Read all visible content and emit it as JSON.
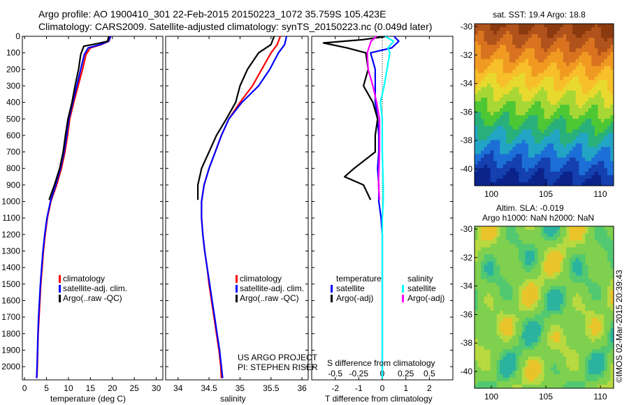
{
  "header": {
    "line1": "Argo profile: AO 1900410_301 22-Feb-2015 20150223_1072 35.759S 105.423E",
    "line2": "Climatology: CARS2009. Satellite-adjusted climatology: synTS_20150223.nc (0.049d later)"
  },
  "footer": {
    "project": "US ARGO PROJECT",
    "pi": "PI: STEPHEN RISER",
    "credit": "©IMOS 02-Mar-2015 20:39:43"
  },
  "maps": {
    "sst": {
      "title": "sat. SST: 19.4 Argo: 18.8",
      "yticks": [
        "-30",
        "-32",
        "-34",
        "-36",
        "-38",
        "-40"
      ],
      "xticks": [
        "100",
        "105",
        "110"
      ]
    },
    "sla": {
      "title1": "Altim. SLA: -0.019",
      "title2": "Argo h1000: NaN h2000: NaN",
      "yticks": [
        "-30",
        "-32",
        "-34",
        "-36",
        "-38",
        "-40"
      ],
      "xticks": [
        "100",
        "105",
        "110"
      ]
    }
  },
  "colors": {
    "climatology": "#ff0000",
    "satellite": "#0000ff",
    "argo": "#000000",
    "sal_satellite": "#00ffff",
    "sal_argo": "#ff00ff"
  },
  "chart_data": [
    {
      "type": "line",
      "xlabel": "temperature (deg C)",
      "ylabel": "",
      "xlim": [
        -0.5,
        31.5
      ],
      "ylim": [
        2080,
        0
      ],
      "xticks": [
        0,
        5,
        10,
        15,
        20,
        25,
        30
      ],
      "yticks": [
        0,
        100,
        200,
        300,
        400,
        500,
        600,
        700,
        800,
        900,
        1000,
        1100,
        1200,
        1300,
        1400,
        1500,
        1600,
        1700,
        1800,
        1900,
        2000
      ],
      "legend": [
        "climatology",
        "satellite-adj. clim.",
        "Argo(..raw -QC)"
      ],
      "series": [
        {
          "name": "climatology",
          "points": [
            [
              19.6,
              0
            ],
            [
              19.2,
              30
            ],
            [
              17.5,
              50
            ],
            [
              15,
              70
            ],
            [
              14,
              110
            ],
            [
              13.2,
              200
            ],
            [
              12.2,
              300
            ],
            [
              11.2,
              400
            ],
            [
              10.3,
              500
            ],
            [
              9.8,
              600
            ],
            [
              9.2,
              700
            ],
            [
              8.4,
              800
            ],
            [
              7.3,
              900
            ],
            [
              6,
              1000
            ],
            [
              5.2,
              1100
            ],
            [
              4.7,
              1200
            ],
            [
              4.3,
              1300
            ],
            [
              4,
              1400
            ],
            [
              3.7,
              1500
            ],
            [
              3.5,
              1600
            ],
            [
              3.3,
              1700
            ],
            [
              3.1,
              1800
            ],
            [
              3,
              1900
            ],
            [
              2.9,
              2000
            ],
            [
              2.8,
              2070
            ]
          ]
        },
        {
          "name": "satellite-adj. clim.",
          "points": [
            [
              19.6,
              0
            ],
            [
              19.1,
              30
            ],
            [
              17.3,
              50
            ],
            [
              14.5,
              70
            ],
            [
              13.6,
              110
            ],
            [
              12.8,
              200
            ],
            [
              11.9,
              300
            ],
            [
              11,
              400
            ],
            [
              10.1,
              500
            ],
            [
              9.6,
              600
            ],
            [
              9,
              700
            ],
            [
              8.2,
              800
            ],
            [
              7.1,
              900
            ],
            [
              5.9,
              1000
            ],
            [
              5.1,
              1100
            ],
            [
              4.6,
              1200
            ],
            [
              4.2,
              1300
            ],
            [
              3.9,
              1400
            ],
            [
              3.6,
              1500
            ],
            [
              3.4,
              1600
            ],
            [
              3.2,
              1700
            ],
            [
              3.05,
              1800
            ],
            [
              2.95,
              1900
            ],
            [
              2.85,
              2000
            ],
            [
              2.75,
              2070
            ]
          ]
        },
        {
          "name": "Argo(..raw -QC)",
          "points": [
            [
              19.2,
              0
            ],
            [
              18.9,
              30
            ],
            [
              16.5,
              45
            ],
            [
              13.5,
              60
            ],
            [
              12.8,
              110
            ],
            [
              12.3,
              200
            ],
            [
              11.5,
              300
            ],
            [
              10.8,
              400
            ],
            [
              9.9,
              500
            ],
            [
              9.3,
              600
            ],
            [
              8.8,
              700
            ],
            [
              8,
              800
            ],
            [
              6.8,
              900
            ],
            [
              5.6,
              990
            ]
          ]
        }
      ]
    },
    {
      "type": "line",
      "xlabel": "salinity",
      "xlim": [
        33.8,
        36.1
      ],
      "ylim": [
        2080,
        0
      ],
      "xticks": [
        34,
        34.5,
        35,
        35.5,
        36
      ],
      "legend": [
        "climatology",
        "satellite-adj. clim.",
        "Argo(..raw -QC)"
      ],
      "series": [
        {
          "name": "climatology",
          "points": [
            [
              35.65,
              0
            ],
            [
              35.6,
              50
            ],
            [
              35.5,
              100
            ],
            [
              35.35,
              200
            ],
            [
              35.2,
              300
            ],
            [
              35.0,
              400
            ],
            [
              34.82,
              500
            ],
            [
              34.7,
              600
            ],
            [
              34.6,
              700
            ],
            [
              34.5,
              800
            ],
            [
              34.42,
              900
            ],
            [
              34.38,
              1000
            ],
            [
              34.38,
              1100
            ],
            [
              34.4,
              1200
            ],
            [
              34.43,
              1300
            ],
            [
              34.47,
              1400
            ],
            [
              34.5,
              1500
            ],
            [
              34.54,
              1600
            ],
            [
              34.58,
              1700
            ],
            [
              34.62,
              1800
            ],
            [
              34.66,
              1900
            ],
            [
              34.69,
              2000
            ],
            [
              34.7,
              2070
            ]
          ]
        },
        {
          "name": "satellite-adj. clim.",
          "points": [
            [
              35.75,
              0
            ],
            [
              35.72,
              50
            ],
            [
              35.62,
              100
            ],
            [
              35.48,
              200
            ],
            [
              35.3,
              300
            ],
            [
              35.03,
              400
            ],
            [
              34.82,
              500
            ],
            [
              34.7,
              600
            ],
            [
              34.6,
              700
            ],
            [
              34.5,
              800
            ],
            [
              34.42,
              900
            ],
            [
              34.38,
              1000
            ],
            [
              34.38,
              1100
            ],
            [
              34.4,
              1200
            ],
            [
              34.43,
              1300
            ],
            [
              34.47,
              1400
            ],
            [
              34.51,
              1500
            ],
            [
              34.55,
              1600
            ],
            [
              34.59,
              1700
            ],
            [
              34.63,
              1800
            ],
            [
              34.67,
              1900
            ],
            [
              34.7,
              2000
            ],
            [
              34.72,
              2070
            ]
          ]
        },
        {
          "name": "Argo(..raw -QC)",
          "points": [
            [
              35.55,
              0
            ],
            [
              35.5,
              50
            ],
            [
              35.3,
              100
            ],
            [
              35.12,
              200
            ],
            [
              35.0,
              300
            ],
            [
              34.93,
              400
            ],
            [
              34.78,
              500
            ],
            [
              34.62,
              600
            ],
            [
              34.5,
              700
            ],
            [
              34.38,
              800
            ],
            [
              34.32,
              900
            ],
            [
              34.32,
              990
            ]
          ]
        }
      ]
    },
    {
      "type": "line",
      "xlabel": "T difference from climatology",
      "xlabel_top": "S difference from climatology",
      "xlim": [
        -3,
        3
      ],
      "ylim": [
        2080,
        0
      ],
      "xticks": [
        -2,
        -1,
        0,
        1,
        2
      ],
      "xticks_top": [
        "-0.5",
        "-0.25",
        "0",
        "0.25",
        "0.5"
      ],
      "legend_headers": [
        "temperature",
        "salinity"
      ],
      "legend": [
        "satellite",
        "Argo(-adj)",
        "satellite",
        "Argo(-adj)"
      ],
      "series": [
        {
          "name": "temperature satellite",
          "points": [
            [
              0.5,
              0
            ],
            [
              0.7,
              30
            ],
            [
              0.4,
              70
            ],
            [
              -0.5,
              100
            ],
            [
              -0.3,
              200
            ],
            [
              -0.3,
              300
            ],
            [
              -0.3,
              400
            ],
            [
              -0.2,
              500
            ],
            [
              -0.15,
              600
            ],
            [
              -0.15,
              700
            ],
            [
              -0.2,
              800
            ],
            [
              -0.15,
              900
            ],
            [
              -0.15,
              1000
            ],
            [
              -0.05,
              1100
            ],
            [
              0,
              1200
            ],
            [
              0,
              2070
            ]
          ]
        },
        {
          "name": "temperature Argo(-adj)",
          "points": [
            [
              0.2,
              0
            ],
            [
              -0.8,
              20
            ],
            [
              -2.5,
              40
            ],
            [
              -1.5,
              70
            ],
            [
              -0.7,
              100
            ],
            [
              -0.6,
              200
            ],
            [
              -0.8,
              300
            ],
            [
              -0.4,
              400
            ],
            [
              -0.2,
              500
            ],
            [
              -0.3,
              600
            ],
            [
              -0.3,
              700
            ],
            [
              -1.2,
              800
            ],
            [
              -1.6,
              850
            ],
            [
              -0.8,
              900
            ],
            [
              -0.5,
              990
            ]
          ]
        },
        {
          "name": "salinity satellite",
          "points": [
            [
              0.03,
              0
            ],
            [
              0.12,
              30
            ],
            [
              0.06,
              70
            ],
            [
              0.08,
              100
            ],
            [
              0.05,
              200
            ],
            [
              0.02,
              300
            ],
            [
              -0.02,
              400
            ],
            [
              0,
              500
            ],
            [
              0,
              700
            ],
            [
              0.01,
              900
            ],
            [
              0.01,
              1000
            ],
            [
              0,
              1100
            ],
            [
              0,
              2070
            ]
          ]
        },
        {
          "name": "salinity Argo(-adj)",
          "points": [
            [
              -0.06,
              0
            ],
            [
              -0.12,
              30
            ],
            [
              -0.16,
              100
            ],
            [
              -0.15,
              200
            ],
            [
              -0.1,
              300
            ],
            [
              -0.06,
              400
            ],
            [
              -0.03,
              500
            ],
            [
              -0.03,
              700
            ],
            [
              -0.04,
              900
            ],
            [
              -0.03,
              990
            ]
          ]
        }
      ]
    }
  ]
}
